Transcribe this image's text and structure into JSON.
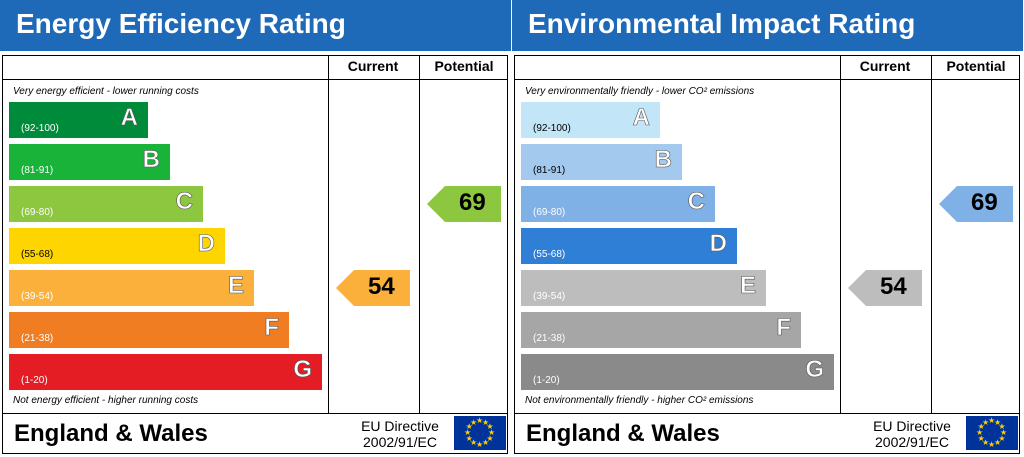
{
  "chart_data": [
    {
      "type": "bar",
      "title": "Energy Efficiency Rating",
      "columns": [
        "Current",
        "Potential"
      ],
      "top_note": "Very energy efficient - lower running costs",
      "bottom_note": "Not energy efficient - higher running costs",
      "categories": [
        "A",
        "B",
        "C",
        "D",
        "E",
        "F",
        "G"
      ],
      "ranges": [
        "(92-100)",
        "(81-91)",
        "(69-80)",
        "(55-68)",
        "(39-54)",
        "(21-38)",
        "(1-20)"
      ],
      "band_colors": [
        "#008b3a",
        "#19b33a",
        "#8dc63f",
        "#ffd500",
        "#fbb03b",
        "#f07d22",
        "#e31d23"
      ],
      "current": {
        "value": 54,
        "band": "E",
        "color": "#fbb03b"
      },
      "potential": {
        "value": 69,
        "band": "C",
        "color": "#8dc63f"
      },
      "footer": {
        "country": "England & Wales",
        "directive_line1": "EU Directive",
        "directive_line2": "2002/91/EC"
      }
    },
    {
      "type": "bar",
      "title": "Environmental Impact Rating",
      "columns": [
        "Current",
        "Potential"
      ],
      "top_note": "Very environmentally friendly - lower CO² emissions",
      "bottom_note": "Not environmentally friendly - higher CO² emissions",
      "categories": [
        "A",
        "B",
        "C",
        "D",
        "E",
        "F",
        "G"
      ],
      "ranges": [
        "(92-100)",
        "(81-91)",
        "(69-80)",
        "(55-68)",
        "(39-54)",
        "(21-38)",
        "(1-20)"
      ],
      "band_colors": [
        "#c2e6f8",
        "#a3c9ee",
        "#7fb0e6",
        "#2f7fd6",
        "#bdbdbd",
        "#a6a6a6",
        "#8a8a8a"
      ],
      "current": {
        "value": 54,
        "band": "E",
        "color": "#bdbdbd"
      },
      "potential": {
        "value": 69,
        "band": "C",
        "color": "#7fb0e6"
      },
      "footer": {
        "country": "England & Wales",
        "directive_line1": "EU Directive",
        "directive_line2": "2002/91/EC"
      }
    }
  ]
}
